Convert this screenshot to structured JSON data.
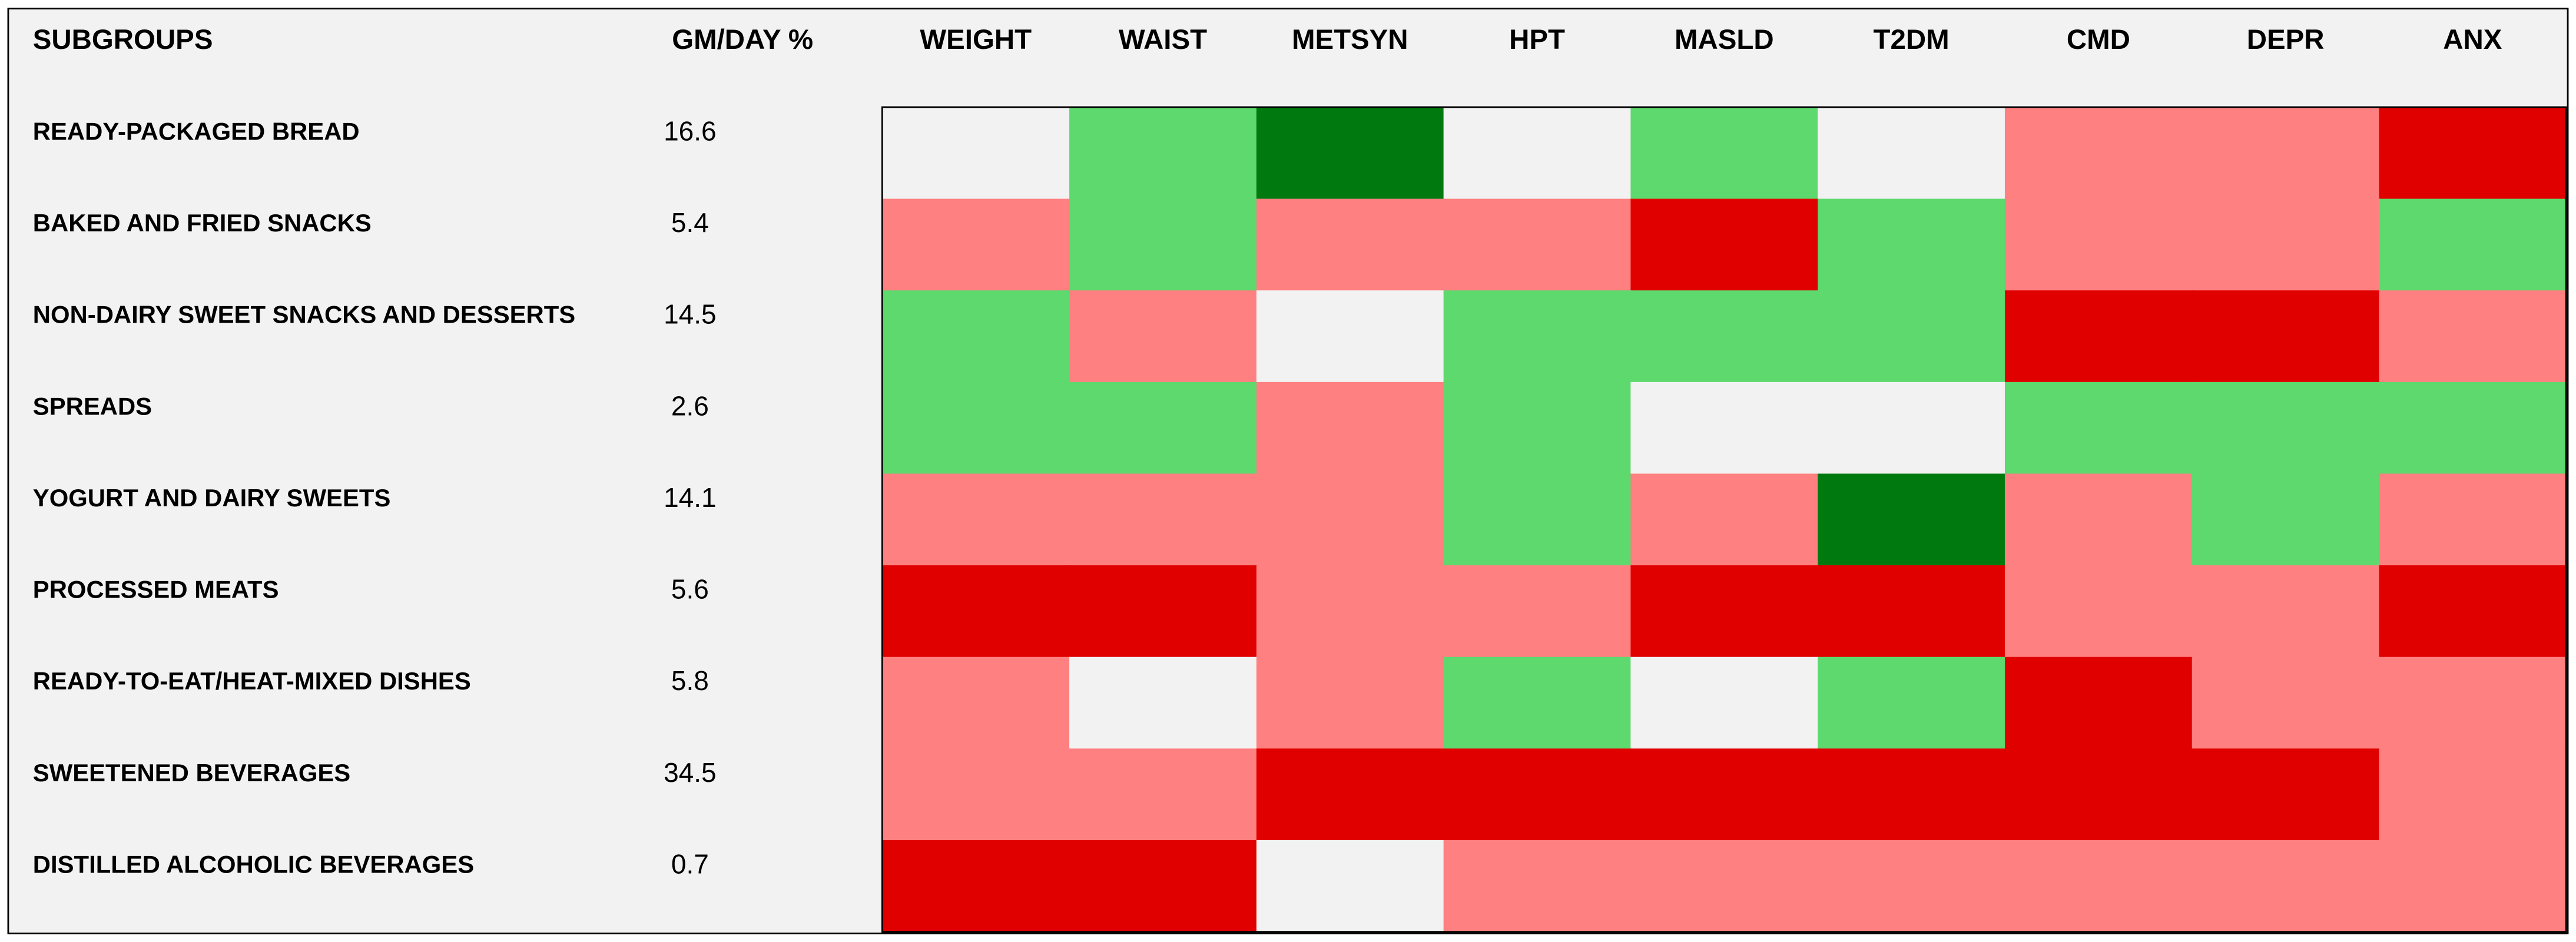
{
  "table": {
    "columns": [
      "SUBGROUPS",
      "GM/DAY %",
      "WEIGHT",
      "WAIST",
      "METSYN",
      "HPT",
      "MASLD",
      "T2DM",
      "CMD",
      "DEPR",
      "ANX"
    ],
    "rows": [
      {
        "label": "READY-PACKAGED BREAD",
        "gm": 16.6,
        "cells": [
          "#f2f2f2",
          "#5ed96e",
          "#007a0f",
          "#f2f2f2",
          "#5ed96e",
          "#f2f2f2",
          "#ff8080",
          "#ff8080",
          "#e00000"
        ]
      },
      {
        "label": "BAKED AND FRIED SNACKS",
        "gm": 5.4,
        "cells": [
          "#ff8080",
          "#5ed96e",
          "#ff8080",
          "#ff8080",
          "#e00000",
          "#5ed96e",
          "#ff8080",
          "#ff8080",
          "#5ed96e"
        ]
      },
      {
        "label": "NON-DAIRY SWEET SNACKS AND DESSERTS",
        "gm": 14.5,
        "cells": [
          "#5ed96e",
          "#ff8080",
          "#f2f2f2",
          "#5ed96e",
          "#5ed96e",
          "#5ed96e",
          "#e00000",
          "#e00000",
          "#ff8080"
        ]
      },
      {
        "label": "SPREADS",
        "gm": 2.6,
        "cells": [
          "#5ed96e",
          "#5ed96e",
          "#ff8080",
          "#5ed96e",
          "#f2f2f2",
          "#f2f2f2",
          "#5ed96e",
          "#5ed96e",
          "#5ed96e"
        ]
      },
      {
        "label": "YOGURT AND DAIRY SWEETS",
        "gm": 14.1,
        "cells": [
          "#ff8080",
          "#ff8080",
          "#ff8080",
          "#5ed96e",
          "#ff8080",
          "#007a0f",
          "#ff8080",
          "#5ed96e",
          "#ff8080"
        ]
      },
      {
        "label": "PROCESSED MEATS",
        "gm": 5.6,
        "cells": [
          "#e00000",
          "#e00000",
          "#ff8080",
          "#ff8080",
          "#e00000",
          "#e00000",
          "#ff8080",
          "#ff8080",
          "#e00000"
        ]
      },
      {
        "label": "READY-TO-EAT/HEAT-MIXED DISHES",
        "gm": 5.8,
        "cells": [
          "#ff8080",
          "#f2f2f2",
          "#ff8080",
          "#5ed96e",
          "#f2f2f2",
          "#5ed96e",
          "#e00000",
          "#ff8080",
          "#ff8080"
        ]
      },
      {
        "label": "SWEETENED BEVERAGES",
        "gm": 34.5,
        "cells": [
          "#ff8080",
          "#ff8080",
          "#e00000",
          "#e00000",
          "#e00000",
          "#e00000",
          "#e00000",
          "#e00000",
          "#ff8080"
        ]
      },
      {
        "label": "DISTILLED ALCOHOLIC BEVERAGES",
        "gm": 0.7,
        "cells": [
          "#e00000",
          "#e00000",
          "#f2f2f2",
          "#ff8080",
          "#ff8080",
          "#ff8080",
          "#ff8080",
          "#ff8080",
          "#ff8080"
        ]
      }
    ]
  }
}
